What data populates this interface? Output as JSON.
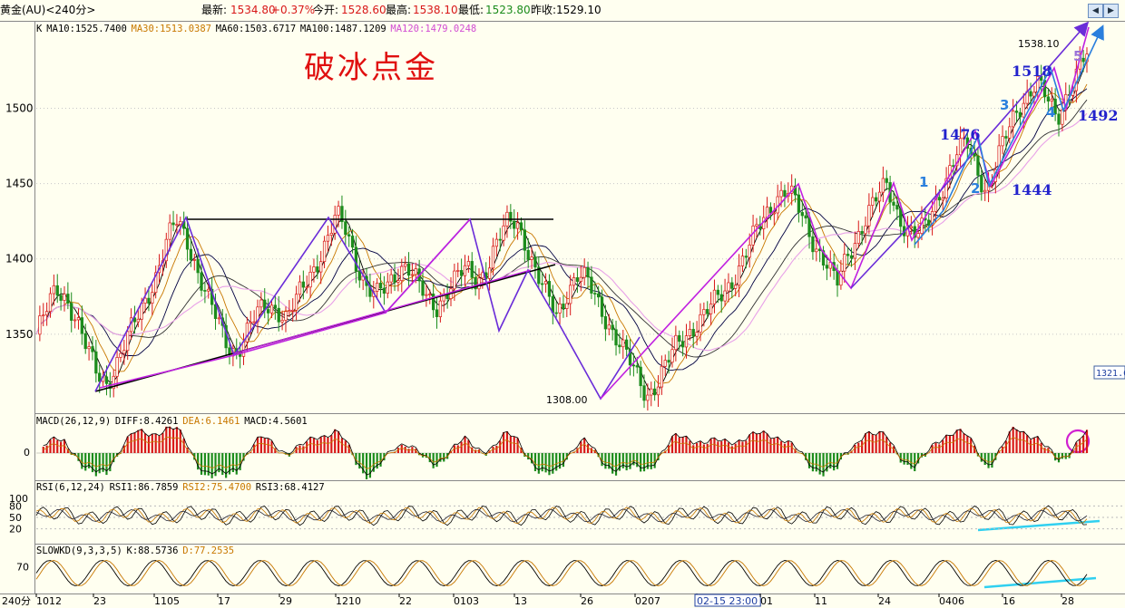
{
  "header": {
    "symbol": "黄金(AU)<240分>",
    "latest_label": "最新:",
    "latest": "1534.80",
    "change": "+0.37%",
    "open_label": "今开:",
    "open": "1528.60",
    "high_label": "最高:",
    "high": "1538.10",
    "low_label": "最低:",
    "low": "1523.80",
    "prev_close_label": "昨收:",
    "prev_close": "1529.10"
  },
  "main_panel": {
    "ma_legend": [
      {
        "text": "K",
        "color": "#000000"
      },
      {
        "text": "MA10:1525.7400",
        "color": "#000000"
      },
      {
        "text": "MA30:1513.0387",
        "color": "#c87800"
      },
      {
        "text": "MA60:1503.6717",
        "color": "#000000"
      },
      {
        "text": "MA100:1487.1209",
        "color": "#000000"
      },
      {
        "text": "MA120:1479.0248",
        "color": "#d24cd2"
      }
    ],
    "headline": "破冰点金",
    "y_ticks": [
      {
        "value": 1500,
        "label": "1500"
      },
      {
        "value": 1450,
        "label": "1450"
      },
      {
        "value": 1400,
        "label": "1400"
      },
      {
        "value": 1350,
        "label": "1350"
      }
    ],
    "price_label_right": "1321.6"
  },
  "chart_data": {
    "type": "candlestick",
    "interval": "240分",
    "y_range": [
      1300,
      1555
    ],
    "x_tick_labels": [
      "1012",
      "23",
      "1105",
      "17",
      "29",
      "1210",
      "22",
      "0103",
      "13",
      "26",
      "0207",
      "02-15 23:00",
      "01",
      "11",
      "24",
      "0406",
      "16",
      "28"
    ],
    "price_path": [
      1350,
      1365,
      1380,
      1375,
      1360,
      1340,
      1325,
      1318,
      1330,
      1345,
      1360,
      1375,
      1390,
      1410,
      1425,
      1415,
      1395,
      1375,
      1360,
      1345,
      1338,
      1350,
      1362,
      1370,
      1368,
      1360,
      1372,
      1385,
      1398,
      1412,
      1428,
      1418,
      1398,
      1382,
      1375,
      1380,
      1392,
      1398,
      1385,
      1372,
      1368,
      1380,
      1388,
      1392,
      1385,
      1395,
      1410,
      1422,
      1425,
      1410,
      1390,
      1375,
      1362,
      1378,
      1390,
      1385,
      1372,
      1360,
      1348,
      1335,
      1322,
      1310,
      1318,
      1330,
      1342,
      1350,
      1358,
      1365,
      1372,
      1380,
      1392,
      1405,
      1418,
      1430,
      1442,
      1447,
      1435,
      1420,
      1408,
      1398,
      1382,
      1400,
      1415,
      1430,
      1440,
      1448,
      1432,
      1420,
      1415,
      1422,
      1440,
      1455,
      1470,
      1476,
      1460,
      1445,
      1465,
      1482,
      1498,
      1510,
      1518,
      1505,
      1492,
      1510,
      1525,
      1535
    ],
    "swing_points": [
      {
        "label": "1308.00",
        "value": 1308.0
      },
      {
        "label": "1538.10",
        "value": 1538.1
      },
      {
        "label": "1518",
        "value": 1518
      },
      {
        "label": "1476",
        "value": 1476
      },
      {
        "label": "1492",
        "value": 1492
      },
      {
        "label": "1444",
        "value": 1444
      }
    ],
    "wave_labels": [
      "1",
      "2",
      "3",
      "4",
      "5"
    ],
    "moving_averages": [
      {
        "name": "MA10",
        "value": 1525.74
      },
      {
        "name": "MA30",
        "value": 1513.0387
      },
      {
        "name": "MA60",
        "value": 1503.6717
      },
      {
        "name": "MA100",
        "value": 1487.1209
      },
      {
        "name": "MA120",
        "value": 1479.0248
      }
    ],
    "macd": {
      "params": "MACD(26,12,9)",
      "DIFF": 8.4261,
      "DEA": 6.1461,
      "MACD": 4.5601,
      "zero_label": "0"
    },
    "rsi": {
      "params": "RSI(6,12,24)",
      "RSI1": 86.7859,
      "RSI2": 75.47,
      "RSI3": 68.4127,
      "ticks": [
        "100",
        "80",
        "50",
        "20"
      ]
    },
    "slowkd": {
      "params": "SLOWKD(9,3,3,5)",
      "K": 88.5736,
      "D": 77.2535,
      "ticks": [
        "70"
      ]
    },
    "corner_label": "240分"
  },
  "indicator_legends": {
    "macd": [
      {
        "text": "MACD(26,12,9)",
        "color": "#000000"
      },
      {
        "text": "DIFF:8.4261",
        "color": "#000000"
      },
      {
        "text": "DEA:6.1461",
        "color": "#c87800"
      },
      {
        "text": "MACD:4.5601",
        "color": "#000000"
      }
    ],
    "rsi": [
      {
        "text": "RSI(6,12,24)",
        "color": "#000000"
      },
      {
        "text": "RSI1:86.7859",
        "color": "#000000"
      },
      {
        "text": "RSI2:75.4700",
        "color": "#c87800"
      },
      {
        "text": "RSI3:68.4127",
        "color": "#000000"
      }
    ],
    "kd": [
      {
        "text": "SLOWKD(9,3,3,5)",
        "color": "#000000"
      },
      {
        "text": "K:88.5736",
        "color": "#000000"
      },
      {
        "text": "D:77.2535",
        "color": "#c87800"
      }
    ]
  },
  "colors": {
    "up": "#d81818",
    "down": "#1c8c1c",
    "magenta": "#c020e0",
    "purple": "#6a2cd8",
    "blue_label": "#2222cc",
    "wave_blue": "#2a7fdd",
    "cyan": "#30d0f0",
    "headline": "#e01010",
    "ma30": "#c87800",
    "ma120": "#e8a0e8"
  }
}
